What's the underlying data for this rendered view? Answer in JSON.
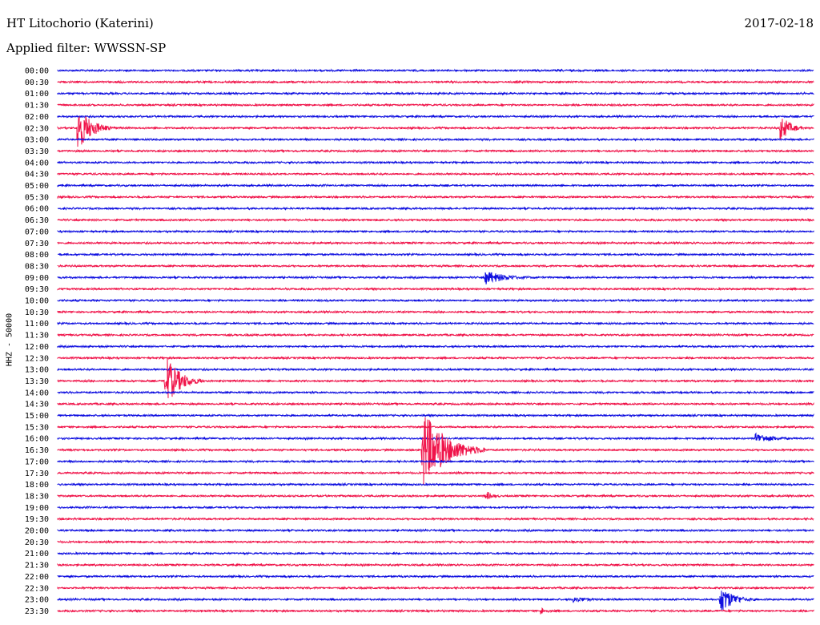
{
  "header": {
    "station": "HT Litochorio (Katerini)",
    "date": "2017-02-18",
    "filter": "Applied filter: WWSSN-SP"
  },
  "chart_data": {
    "type": "line",
    "title": "HT Litochorio (Katerini)",
    "subtitle": "Applied filter: WWSSN-SP",
    "ylabel": "HHZ - 50000",
    "xlabel": "",
    "colors": [
      "#1010e0",
      "#f0144a"
    ],
    "grid": false,
    "rows": [
      "00:00",
      "00:30",
      "01:00",
      "01:30",
      "02:00",
      "02:30",
      "03:00",
      "03:30",
      "04:00",
      "04:30",
      "05:00",
      "05:30",
      "06:00",
      "06:30",
      "07:00",
      "07:30",
      "08:00",
      "08:30",
      "09:00",
      "09:30",
      "10:00",
      "10:30",
      "11:00",
      "11:30",
      "12:00",
      "12:30",
      "13:00",
      "13:30",
      "14:00",
      "14:30",
      "15:00",
      "15:30",
      "16:00",
      "16:30",
      "17:00",
      "17:30",
      "18:00",
      "18:30",
      "19:00",
      "19:30",
      "20:00",
      "20:30",
      "21:00",
      "21:30",
      "22:00",
      "22:30",
      "23:00",
      "23:30"
    ],
    "events": [
      {
        "row": "02:30",
        "minute": 0.8,
        "amplitude": 4.0,
        "duration_min": 1.5
      },
      {
        "row": "02:30",
        "minute": 28.7,
        "amplitude": 2.5,
        "duration_min": 1.0
      },
      {
        "row": "09:00",
        "minute": 17.0,
        "amplitude": 1.2,
        "duration_min": 2.5
      },
      {
        "row": "13:30",
        "minute": 4.3,
        "amplitude": 4.5,
        "duration_min": 1.5
      },
      {
        "row": "16:00",
        "minute": 27.7,
        "amplitude": 1.0,
        "duration_min": 2.0
      },
      {
        "row": "16:30",
        "minute": 14.5,
        "amplitude": 7.0,
        "duration_min": 2.5
      },
      {
        "row": "18:30",
        "minute": 17.0,
        "amplitude": 0.8,
        "duration_min": 1.0
      },
      {
        "row": "23:00",
        "minute": 20.5,
        "amplitude": 0.6,
        "duration_min": 1.5
      },
      {
        "row": "23:00",
        "minute": 26.3,
        "amplitude": 2.5,
        "duration_min": 1.5
      },
      {
        "row": "23:30",
        "minute": 19.2,
        "amplitude": 0.6,
        "duration_min": 0.8
      }
    ]
  }
}
